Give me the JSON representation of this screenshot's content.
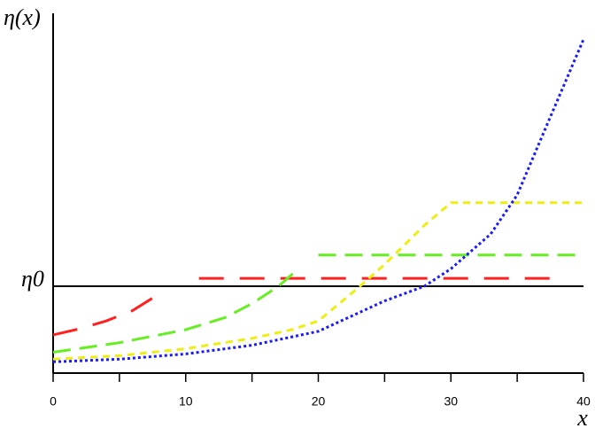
{
  "chart_data": {
    "type": "line",
    "ylabel": "η(x)",
    "xlabel": "x",
    "xlim": [
      0,
      40
    ],
    "xticks": [
      0,
      10,
      20,
      30,
      40
    ],
    "minor_xticks": [
      5,
      15,
      25,
      35
    ],
    "ylim": [
      0,
      4.1
    ],
    "reference_line": {
      "value": 1,
      "label": "η0"
    },
    "series": [
      {
        "color": "#ff2020",
        "dash": "28 18",
        "x": [
          0,
          2,
          4,
          6,
          8.2,
          9.5,
          11,
          37.5
        ],
        "values": [
          0.44,
          0.51,
          0.6,
          0.72,
          0.93,
          null,
          1.09,
          1.09
        ]
      },
      {
        "color": "#66ee22",
        "dash": "20 10",
        "x": [
          0,
          5,
          10,
          13,
          15,
          17,
          18.5,
          19.2,
          20,
          40
        ],
        "values": [
          0.24,
          0.35,
          0.5,
          0.64,
          0.8,
          1.0,
          1.2,
          null,
          1.36,
          1.36
        ]
      },
      {
        "color": "#eeee10",
        "dash": "8 6",
        "x": [
          0,
          5,
          10,
          15,
          18,
          20,
          23,
          25,
          28,
          30,
          40
        ],
        "values": [
          0.16,
          0.2,
          0.28,
          0.4,
          0.5,
          0.6,
          0.98,
          1.25,
          1.7,
          1.96,
          1.96
        ]
      },
      {
        "color": "#1a1aff",
        "dash": "3 3",
        "x": [
          0,
          5,
          10,
          15,
          20,
          25,
          28,
          30,
          33,
          35,
          37,
          40
        ],
        "values": [
          0.13,
          0.16,
          0.22,
          0.32,
          0.48,
          0.83,
          1.0,
          1.2,
          1.6,
          2.05,
          2.77,
          3.84
        ]
      }
    ]
  }
}
